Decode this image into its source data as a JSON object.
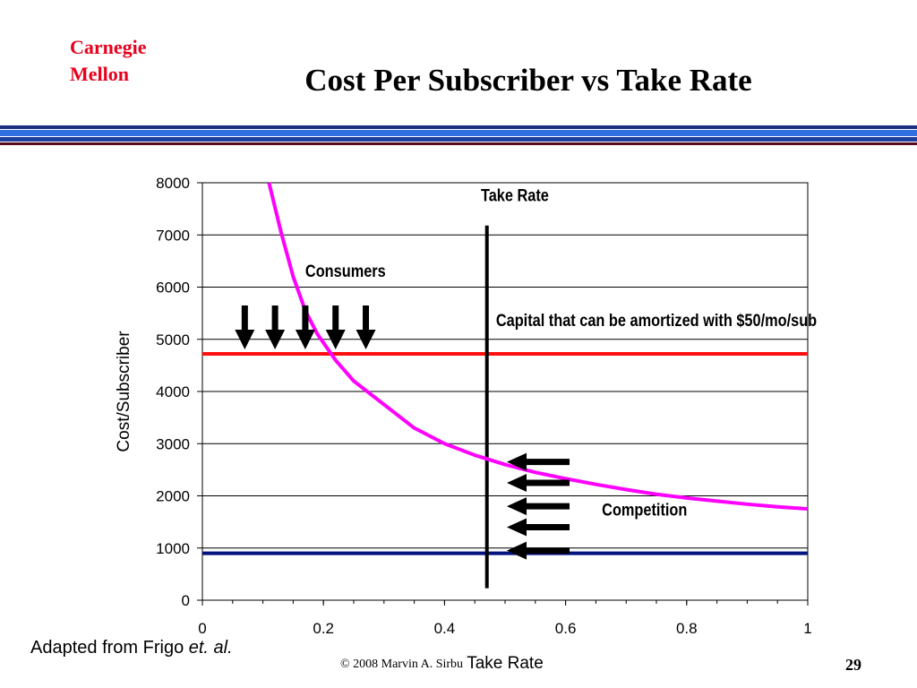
{
  "slide": {
    "logo_line1": "Carnegie",
    "logo_line2": "Mellon",
    "title": "Cost Per Subscriber vs Take Rate",
    "footnote_prefix": "Adapted from Frigo ",
    "footnote_italic": "et. al.",
    "copyright": "©  2008  Marvin A. Sirbu",
    "page_number": "29",
    "band_colors": [
      "#1a2f80",
      "#2f6fe0",
      "#1e3fa0",
      "#5a0a20"
    ],
    "logo_color": "#e8001c"
  },
  "chart_data": {
    "type": "line",
    "xlabel": "Take Rate",
    "ylabel": "Cost/Subscriber",
    "xlim": [
      0,
      1
    ],
    "ylim": [
      0,
      8000
    ],
    "x_ticks": [
      0,
      0.2,
      0.4,
      0.6,
      0.8,
      1
    ],
    "x_tick_labels": [
      "0",
      "0.2",
      "0.4",
      "0.6",
      "0.8",
      "1"
    ],
    "y_ticks": [
      0,
      1000,
      2000,
      3000,
      4000,
      5000,
      6000,
      7000,
      8000
    ],
    "y_tick_labels": [
      "0",
      "1000",
      "2000",
      "3000",
      "4000",
      "5000",
      "6000",
      "7000",
      "8000"
    ],
    "grid": "horizontal",
    "series": [
      {
        "color": "#ff00ff",
        "x": [
          0.11,
          0.13,
          0.15,
          0.17,
          0.19,
          0.22,
          0.25,
          0.3,
          0.35,
          0.4,
          0.45,
          0.5,
          0.55,
          0.6,
          0.65,
          0.7,
          0.75,
          0.8,
          0.85,
          0.9,
          0.95,
          1.0
        ],
        "y": [
          8000,
          7050,
          6200,
          5550,
          5100,
          4600,
          4200,
          3750,
          3300,
          3000,
          2780,
          2600,
          2450,
          2330,
          2220,
          2120,
          2030,
          1960,
          1900,
          1840,
          1790,
          1750
        ]
      }
    ],
    "reference_lines": [
      {
        "orientation": "horizontal",
        "value": 4720,
        "color": "#ff1010"
      },
      {
        "orientation": "horizontal",
        "value": 900,
        "color": "#00137f"
      },
      {
        "orientation": "vertical",
        "value": 0.47,
        "y_range": [
          230,
          7180
        ],
        "color": "#000000"
      }
    ],
    "annotations": [
      {
        "text": "Take Rate",
        "x": 0.46,
        "y": 7650
      },
      {
        "text": "Consumers",
        "x": 0.17,
        "y": 6200
      },
      {
        "text": "Capital that can be amortized with $50/mo/sub",
        "x": 0.485,
        "y": 5250
      },
      {
        "text": "Competition",
        "x": 0.66,
        "y": 1620
      }
    ],
    "down_arrows": [
      0.07,
      0.12,
      0.17,
      0.22,
      0.27
    ],
    "left_arrows": [
      2650,
      2250,
      1800,
      1400,
      950
    ]
  }
}
